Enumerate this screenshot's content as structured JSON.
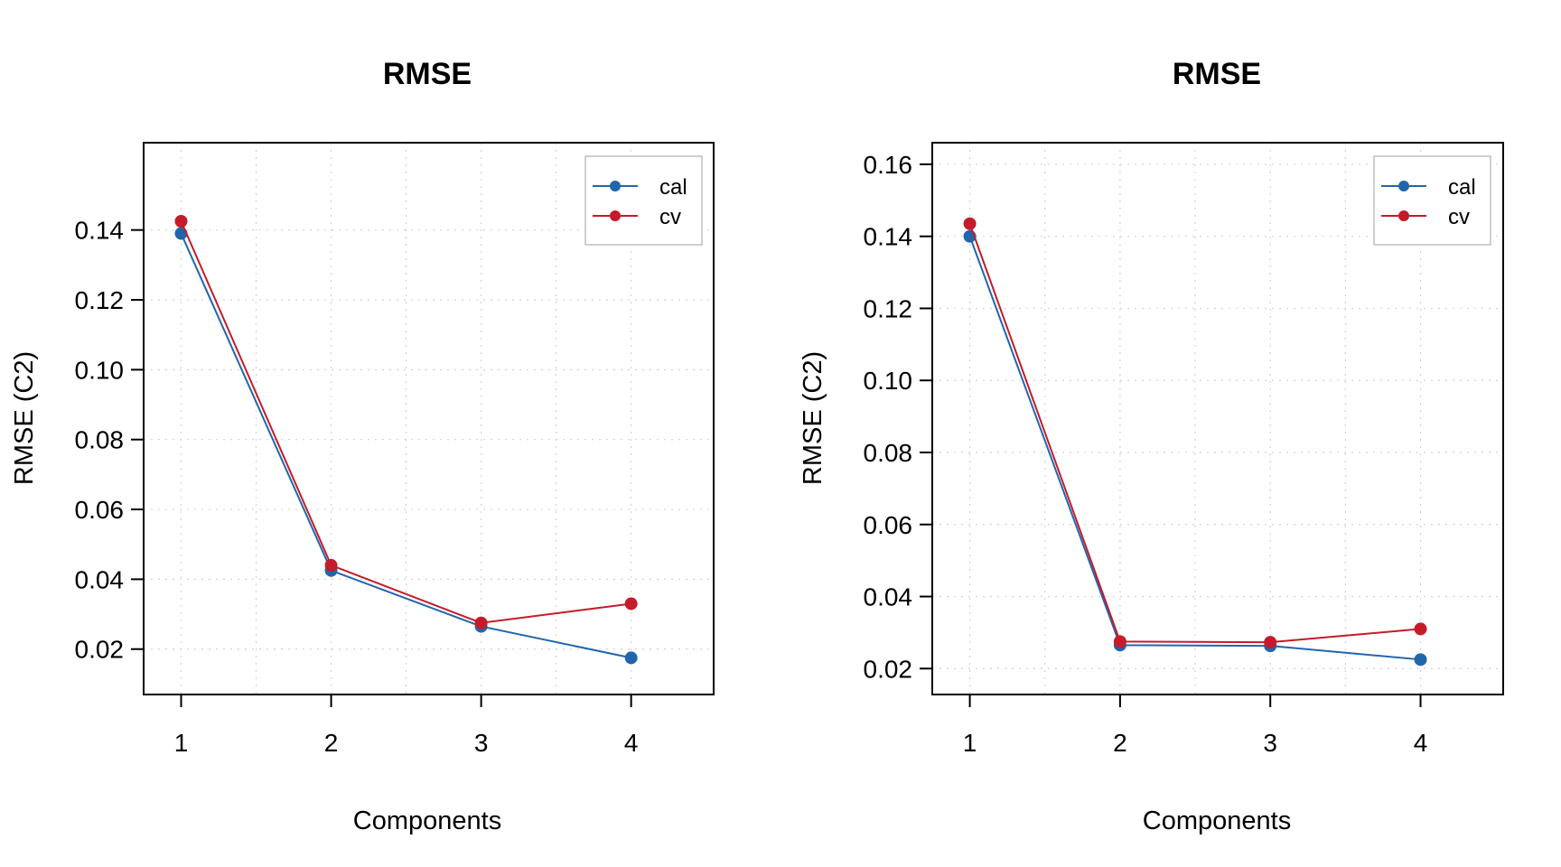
{
  "colors": {
    "cal": "#2166ac",
    "cv": "#c51b2a"
  },
  "chart_data": [
    {
      "type": "line",
      "title": "RMSE",
      "xlabel": "Components",
      "ylabel": "RMSE (C2)",
      "x": [
        1,
        2,
        3,
        4
      ],
      "xticks": [
        "1",
        "2",
        "3",
        "4"
      ],
      "yticks": [
        "0.02",
        "0.04",
        "0.06",
        "0.08",
        "0.10",
        "0.12",
        "0.14"
      ],
      "xlim": [
        0.75,
        4.55
      ],
      "ylim": [
        0.007,
        0.165
      ],
      "grid": true,
      "legend_position": "top-right",
      "series": [
        {
          "name": "cal",
          "values": [
            0.139,
            0.0425,
            0.0265,
            0.0175
          ]
        },
        {
          "name": "cv",
          "values": [
            0.1425,
            0.044,
            0.0275,
            0.033
          ]
        }
      ]
    },
    {
      "type": "line",
      "title": "RMSE",
      "xlabel": "Components",
      "ylabel": "RMSE (C2)",
      "x": [
        1,
        2,
        3,
        4
      ],
      "xticks": [
        "1",
        "2",
        "3",
        "4"
      ],
      "yticks": [
        "0.02",
        "0.04",
        "0.06",
        "0.08",
        "0.10",
        "0.12",
        "0.14",
        "0.16"
      ],
      "xlim": [
        0.75,
        4.55
      ],
      "ylim": [
        0.0128,
        0.166
      ],
      "grid": true,
      "legend_position": "top-right",
      "series": [
        {
          "name": "cal",
          "values": [
            0.14,
            0.0265,
            0.0263,
            0.0225
          ]
        },
        {
          "name": "cv",
          "values": [
            0.1435,
            0.0275,
            0.0273,
            0.031
          ]
        }
      ]
    }
  ]
}
